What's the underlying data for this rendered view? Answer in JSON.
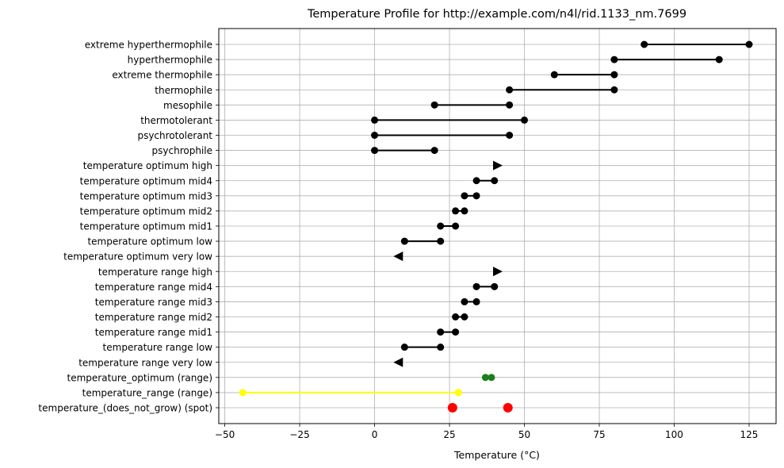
{
  "chart_data": {
    "type": "scatter",
    "title": "Temperature Profile for http://example.com/n4l/rid.1133_nm.7699",
    "xlabel": "Temperature (°C)",
    "ylabel": "",
    "xlim": [
      -52,
      134
    ],
    "xticks": [
      -50,
      -25,
      0,
      25,
      50,
      75,
      100,
      125
    ],
    "xtick_labels": [
      "−50",
      "−25",
      "0",
      "25",
      "50",
      "75",
      "100",
      "125"
    ],
    "grid": true,
    "categories": [
      "extreme hyperthermophile",
      "hyperthermophile",
      "extreme thermophile",
      "thermophile",
      "mesophile",
      "thermotolerant",
      "psychrotolerant",
      "psychrophile",
      "temperature optimum high",
      "temperature optimum mid4",
      "temperature optimum mid3",
      "temperature optimum mid2",
      "temperature optimum mid1",
      "temperature optimum low",
      "temperature optimum very low",
      "temperature range high",
      "temperature range mid4",
      "temperature range mid3",
      "temperature range mid2",
      "temperature range mid1",
      "temperature range low",
      "temperature range very low",
      "temperature_optimum (range)",
      "temperature_range (range)",
      "temperature_(does_not_grow) (spot)"
    ],
    "ranges": [
      {
        "category": "extreme hyperthermophile",
        "x": [
          90,
          125
        ],
        "color": "#000000"
      },
      {
        "category": "hyperthermophile",
        "x": [
          80,
          115
        ],
        "color": "#000000"
      },
      {
        "category": "extreme thermophile",
        "x": [
          60,
          80
        ],
        "color": "#000000"
      },
      {
        "category": "thermophile",
        "x": [
          45,
          80
        ],
        "color": "#000000"
      },
      {
        "category": "mesophile",
        "x": [
          20,
          45
        ],
        "color": "#000000"
      },
      {
        "category": "thermotolerant",
        "x": [
          0,
          50
        ],
        "color": "#000000"
      },
      {
        "category": "psychrotolerant",
        "x": [
          0,
          45
        ],
        "color": "#000000"
      },
      {
        "category": "psychrophile",
        "x": [
          0,
          20
        ],
        "color": "#000000"
      },
      {
        "category": "temperature optimum mid4",
        "x": [
          34,
          40
        ],
        "color": "#000000"
      },
      {
        "category": "temperature optimum mid3",
        "x": [
          30,
          34
        ],
        "color": "#000000"
      },
      {
        "category": "temperature optimum mid2",
        "x": [
          27,
          30
        ],
        "color": "#000000"
      },
      {
        "category": "temperature optimum mid1",
        "x": [
          22,
          27
        ],
        "color": "#000000"
      },
      {
        "category": "temperature optimum low",
        "x": [
          10,
          22
        ],
        "color": "#000000"
      },
      {
        "category": "temperature range mid4",
        "x": [
          34,
          40
        ],
        "color": "#000000"
      },
      {
        "category": "temperature range mid3",
        "x": [
          30,
          34
        ],
        "color": "#000000"
      },
      {
        "category": "temperature range mid2",
        "x": [
          27,
          30
        ],
        "color": "#000000"
      },
      {
        "category": "temperature range mid1",
        "x": [
          22,
          27
        ],
        "color": "#000000"
      },
      {
        "category": "temperature range low",
        "x": [
          10,
          22
        ],
        "color": "#000000"
      },
      {
        "category": "temperature_optimum (range)",
        "x": [
          37,
          39
        ],
        "color": "#1a7f1a"
      },
      {
        "category": "temperature_range (range)",
        "x": [
          -44,
          28
        ],
        "color": "#ffff00"
      }
    ],
    "markers": [
      {
        "category": "temperature optimum high",
        "x": 41,
        "shape": "triangle-right",
        "color": "#000000"
      },
      {
        "category": "temperature optimum very low",
        "x": 8,
        "shape": "triangle-left",
        "color": "#000000"
      },
      {
        "category": "temperature range high",
        "x": 41,
        "shape": "triangle-right",
        "color": "#000000"
      },
      {
        "category": "temperature range very low",
        "x": 8,
        "shape": "triangle-left",
        "color": "#000000"
      }
    ],
    "spots": [
      {
        "category": "temperature_(does_not_grow) (spot)",
        "x": 26,
        "color": "#ff0000"
      },
      {
        "category": "temperature_(does_not_grow) (spot)",
        "x": 44.5,
        "color": "#ff0000"
      }
    ]
  }
}
